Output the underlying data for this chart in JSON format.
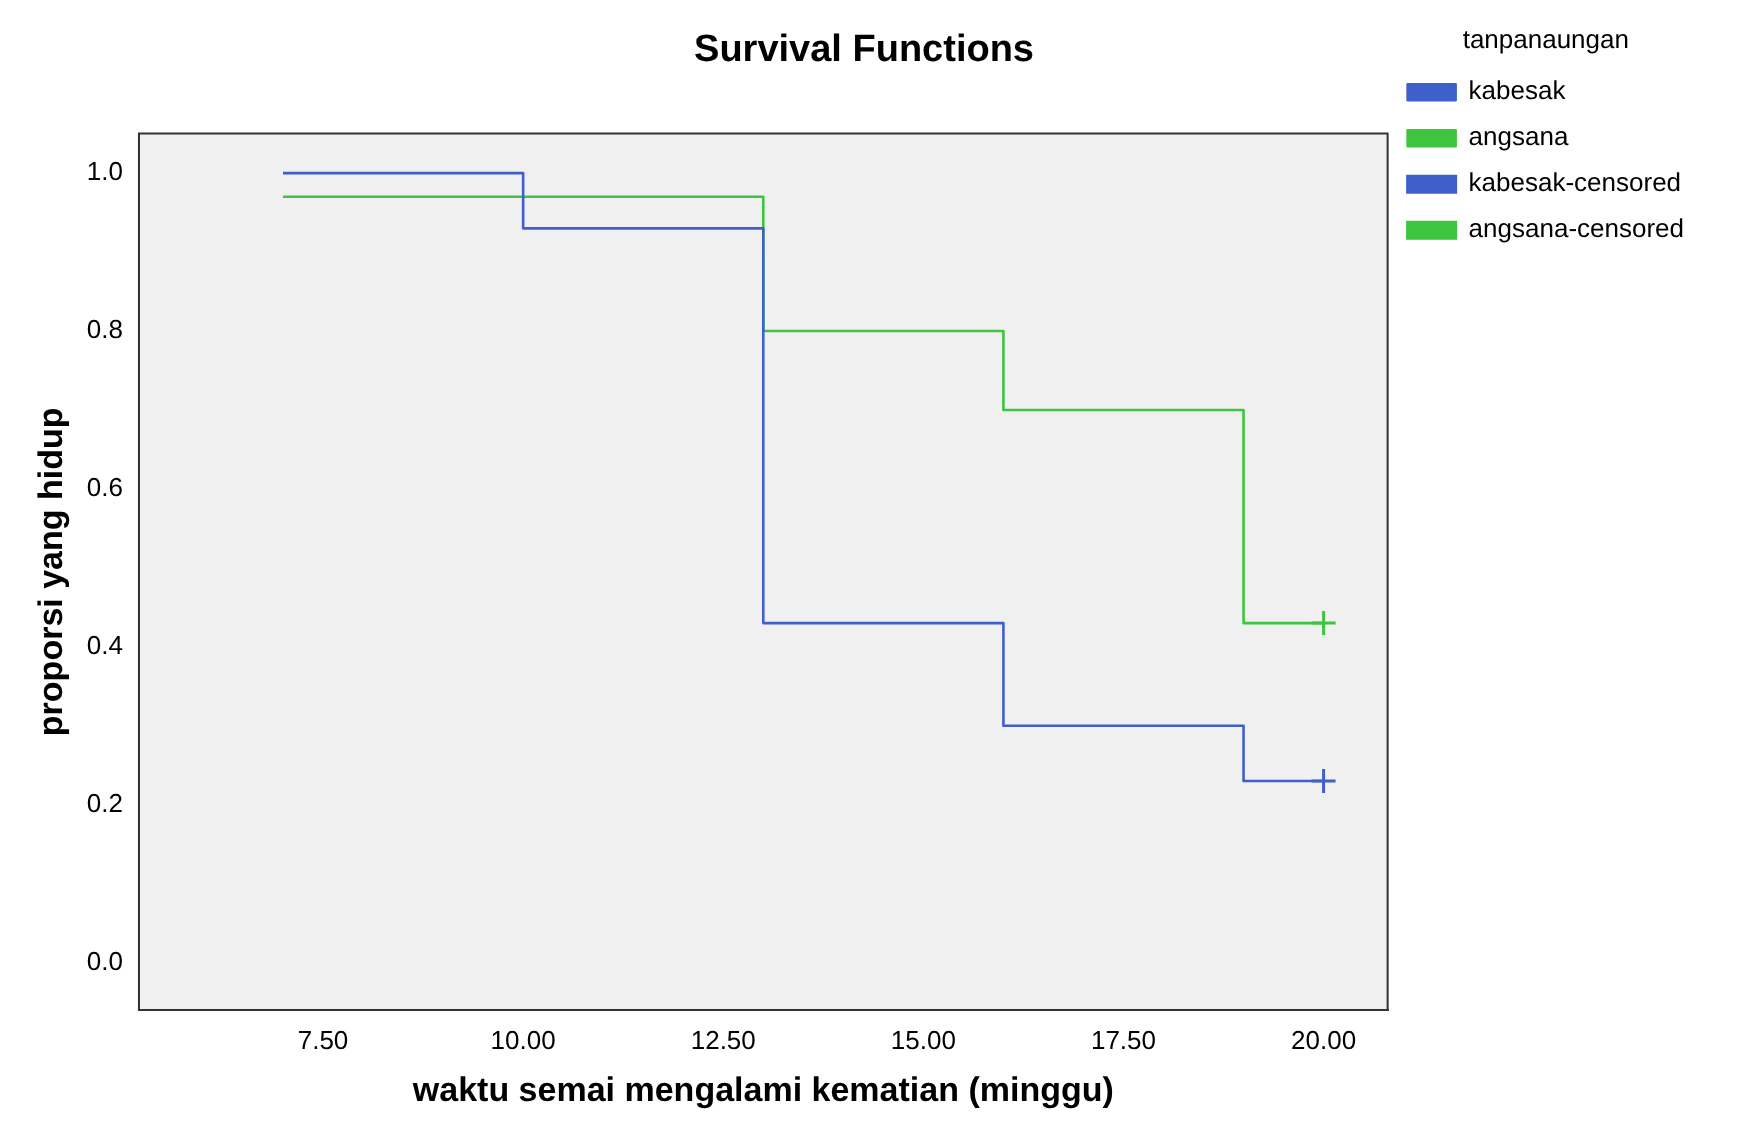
{
  "chart_data": {
    "type": "step",
    "title": "Survival Functions",
    "xlabel": "waktu semai mengalami kematian (minggu)",
    "ylabel": "proporsi yang hidup",
    "legend_title": "tanpanaungan",
    "legend": "right",
    "grid": false,
    "xlim": [
      5.2,
      20.8
    ],
    "xticks": [
      {
        "value": 7.5,
        "label": "7.50"
      },
      {
        "value": 10,
        "label": "10.00"
      },
      {
        "value": 12.5,
        "label": "12.50"
      },
      {
        "value": 15,
        "label": "15.00"
      },
      {
        "value": 17.5,
        "label": "17.50"
      },
      {
        "value": 20,
        "label": "20.00"
      }
    ],
    "ylim": [
      -0.06,
      1.05
    ],
    "yticks": [
      {
        "value": 0,
        "label": "0.0"
      },
      {
        "value": 0.2,
        "label": "0.2"
      },
      {
        "value": 0.4,
        "label": "0.4"
      },
      {
        "value": 0.6,
        "label": "0.6"
      },
      {
        "value": 0.8,
        "label": "0.8"
      },
      {
        "value": 1,
        "label": "1.0"
      }
    ],
    "series": [
      {
        "name": "kabesak",
        "color": "#3f5fcb",
        "x": [
          7,
          10,
          13,
          16,
          19,
          20
        ],
        "values": [
          1,
          0.93,
          0.43,
          0.3,
          0.23,
          0.23
        ]
      },
      {
        "name": "angsana",
        "color": "#3ec43e",
        "x": [
          7,
          13,
          16,
          19,
          20
        ],
        "values": [
          0.97,
          0.8,
          0.7,
          0.43,
          0.43
        ]
      },
      {
        "name": "kabesak-censored",
        "type": "scatter",
        "marker": "cross",
        "color": "#3f5fcb",
        "x": [
          20
        ],
        "values": [
          0.23
        ]
      },
      {
        "name": "angsana-censored",
        "type": "scatter",
        "marker": "cross",
        "color": "#3ec43e",
        "x": [
          20
        ],
        "values": [
          0.43
        ]
      }
    ]
  }
}
